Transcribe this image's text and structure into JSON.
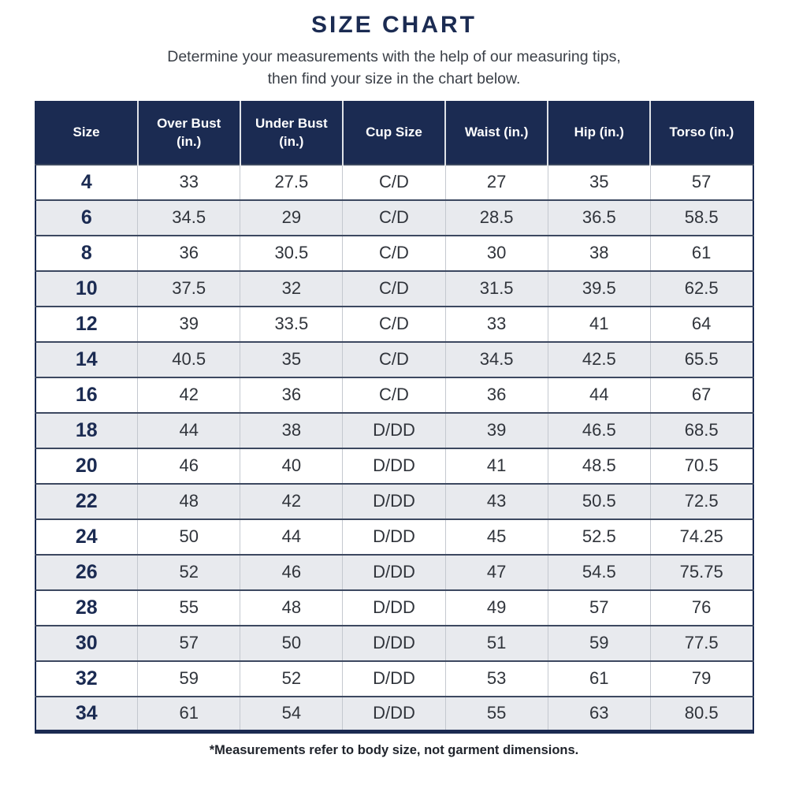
{
  "page": {
    "title": "SIZE CHART",
    "subtitle_line1": "Determine your measurements with the help of our measuring tips,",
    "subtitle_line2": "then find your size in the chart below.",
    "footnote": "*Measurements refer to body size, not garment dimensions."
  },
  "colors": {
    "navy": "#1b2b52",
    "row_alt_gray": "#e8eaee",
    "header_text": "#ffffff",
    "body_text": "#30343b"
  },
  "chart_data": {
    "type": "table",
    "title": "SIZE CHART",
    "headers": [
      "Size",
      "Over Bust (in.)",
      "Under Bust (in.)",
      "Cup Size",
      "Waist (in.)",
      "Hip (in.)",
      "Torso (in.)"
    ],
    "rows": [
      [
        "4",
        "33",
        "27.5",
        "C/D",
        "27",
        "35",
        "57"
      ],
      [
        "6",
        "34.5",
        "29",
        "C/D",
        "28.5",
        "36.5",
        "58.5"
      ],
      [
        "8",
        "36",
        "30.5",
        "C/D",
        "30",
        "38",
        "61"
      ],
      [
        "10",
        "37.5",
        "32",
        "C/D",
        "31.5",
        "39.5",
        "62.5"
      ],
      [
        "12",
        "39",
        "33.5",
        "C/D",
        "33",
        "41",
        "64"
      ],
      [
        "14",
        "40.5",
        "35",
        "C/D",
        "34.5",
        "42.5",
        "65.5"
      ],
      [
        "16",
        "42",
        "36",
        "C/D",
        "36",
        "44",
        "67"
      ],
      [
        "18",
        "44",
        "38",
        "D/DD",
        "39",
        "46.5",
        "68.5"
      ],
      [
        "20",
        "46",
        "40",
        "D/DD",
        "41",
        "48.5",
        "70.5"
      ],
      [
        "22",
        "48",
        "42",
        "D/DD",
        "43",
        "50.5",
        "72.5"
      ],
      [
        "24",
        "50",
        "44",
        "D/DD",
        "45",
        "52.5",
        "74.25"
      ],
      [
        "26",
        "52",
        "46",
        "D/DD",
        "47",
        "54.5",
        "75.75"
      ],
      [
        "28",
        "55",
        "48",
        "D/DD",
        "49",
        "57",
        "76"
      ],
      [
        "30",
        "57",
        "50",
        "D/DD",
        "51",
        "59",
        "77.5"
      ],
      [
        "32",
        "59",
        "52",
        "D/DD",
        "53",
        "61",
        "79"
      ],
      [
        "34",
        "61",
        "54",
        "D/DD",
        "55",
        "63",
        "80.5"
      ]
    ]
  }
}
